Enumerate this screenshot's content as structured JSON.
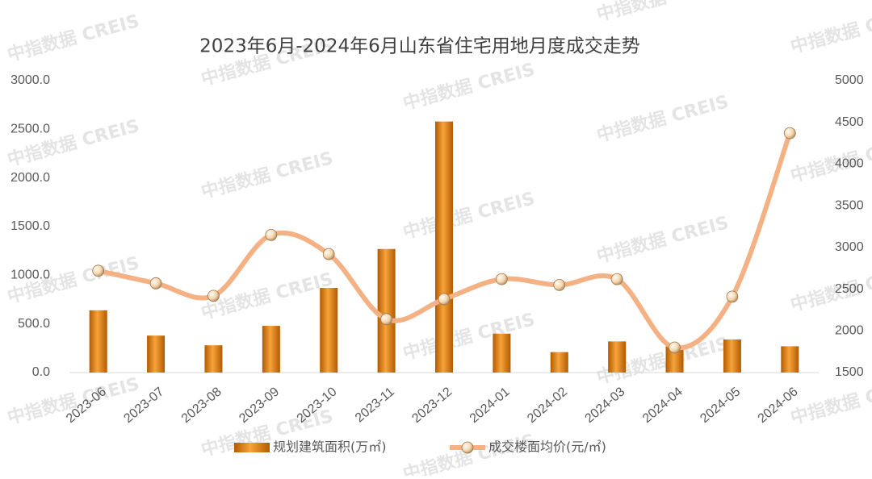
{
  "chart_data": {
    "type": "bar",
    "title": "2023年6月-2024年6月山东省住宅用地月度成交走势",
    "watermark": "中指数据 CREIS",
    "categories": [
      "2023-06",
      "2023-07",
      "2023-08",
      "2023-09",
      "2023-10",
      "2023-11",
      "2023-12",
      "2024-01",
      "2024-02",
      "2024-03",
      "2024-04",
      "2024-05",
      "2024-06"
    ],
    "series": [
      {
        "name": "规划建筑面积(万㎡)",
        "type": "bar",
        "color": "#e0821e",
        "values": [
          640,
          380,
          280,
          480,
          870,
          1270,
          2580,
          400,
          210,
          320,
          270,
          340,
          270
        ]
      },
      {
        "name": "成交楼面均价(元/㎡)",
        "type": "line",
        "axis": "y2",
        "color": "#f4b183",
        "values": [
          2720,
          2570,
          2420,
          3150,
          2920,
          2140,
          2380,
          2620,
          2550,
          2620,
          1800,
          2410,
          4370
        ]
      }
    ],
    "ylim": [
      0,
      3000
    ],
    "yticks": [
      {
        "value": 0,
        "label": "0.0"
      },
      {
        "value": 500,
        "label": "500.0"
      },
      {
        "value": 1000,
        "label": "1000.0"
      },
      {
        "value": 1500,
        "label": "1500.0"
      },
      {
        "value": 2000,
        "label": "2000.0"
      },
      {
        "value": 2500,
        "label": "2500.0"
      },
      {
        "value": 3000,
        "label": "3000.0"
      }
    ],
    "y2lim": [
      1500,
      5000
    ],
    "y2ticks": [
      1500,
      2000,
      2500,
      3000,
      3500,
      4000,
      4500,
      5000
    ],
    "grid": false,
    "legend": "bottom"
  }
}
